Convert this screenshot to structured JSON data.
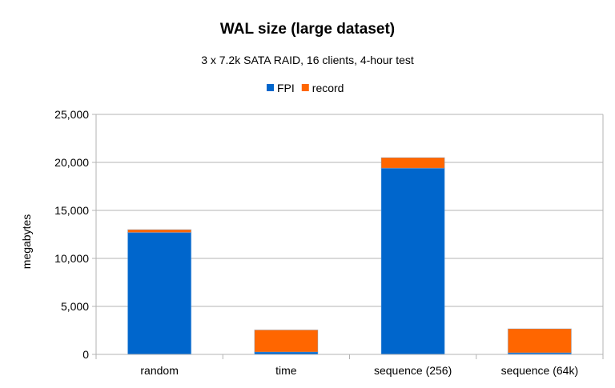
{
  "chart_data": {
    "type": "bar",
    "stacked": true,
    "title": "WAL size (large dataset)",
    "subtitle": "3 x 7.2k SATA RAID, 16 clients, 4-hour test",
    "xlabel": "",
    "ylabel": "megabytes",
    "ylim": [
      0,
      25000
    ],
    "yticks": [
      0,
      5000,
      10000,
      15000,
      20000,
      25000
    ],
    "ytick_labels": [
      "0",
      "5,000",
      "10,000",
      "15,000",
      "20,000",
      "25,000"
    ],
    "grid": true,
    "legend": "top",
    "categories": [
      "random",
      "time",
      "sequence (256)",
      "sequence (64k)"
    ],
    "series": [
      {
        "name": "FPI",
        "color": "#0066cc",
        "values": [
          12700,
          250,
          19400,
          170
        ]
      },
      {
        "name": "record",
        "color": "#ff6600",
        "values": [
          300,
          2300,
          1100,
          2500
        ]
      }
    ]
  }
}
